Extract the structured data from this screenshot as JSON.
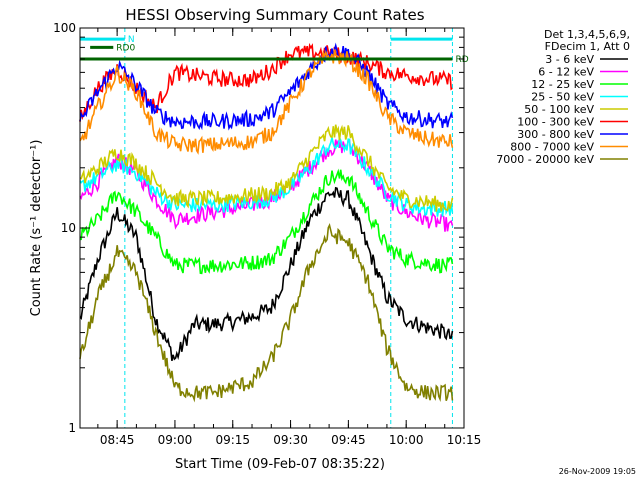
{
  "chart_data": {
    "type": "line",
    "title": "HESSI Observing Summary Count Rates",
    "xlabel": "Start Time (09-Feb-07 08:35:22)",
    "ylabel": "Count Rate (s⁻¹ detector⁻¹)",
    "x_range": [
      "08:35:22",
      "10:15"
    ],
    "ylim": [
      1,
      100
    ],
    "y_scale": "log",
    "x_ticks": [
      "08:45",
      "09:00",
      "09:15",
      "09:30",
      "09:45",
      "10:00",
      "10:15"
    ],
    "y_ticks": [
      "1",
      "10",
      "100"
    ],
    "grid": false,
    "legend_position": "right",
    "legend_header": [
      "Det 1,3,4,5,6,9,",
      "FDecim 1, Att 0"
    ],
    "footer_timestamp": "26-Nov-2009 19:05",
    "flags": [
      {
        "label": "N",
        "color": "#00e5ee",
        "y_level": 88,
        "intervals": [
          [
            "08:35:22",
            "08:47"
          ],
          [
            "09:56",
            "10:12"
          ]
        ]
      },
      {
        "label": "RD0",
        "color": "#006400",
        "y_level": 80,
        "intervals": [
          [
            "08:38",
            "08:44"
          ]
        ]
      },
      {
        "label": "RD",
        "color": "#006400",
        "y_level": 70,
        "intervals": [
          [
            "08:35:22",
            "10:12"
          ]
        ]
      }
    ],
    "vlines": [
      "08:47",
      "09:56",
      "10:12"
    ],
    "x_times": [
      "08:35:22",
      "08:40",
      "08:45",
      "08:50",
      "08:55",
      "09:00",
      "09:05",
      "09:10",
      "09:15",
      "09:20",
      "09:25",
      "09:30",
      "09:35",
      "09:40",
      "09:45",
      "09:50",
      "09:55",
      "10:00",
      "10:05",
      "10:10",
      "10:12"
    ],
    "series": [
      {
        "name": "3 - 6 keV",
        "color": "#000000",
        "values": [
          3.5,
          7.0,
          12.0,
          9.0,
          3.5,
          2.2,
          3.3,
          3.3,
          3.4,
          3.6,
          4.0,
          6.5,
          11.0,
          15.0,
          14.0,
          8.0,
          4.5,
          3.5,
          3.2,
          3.0,
          2.8
        ]
      },
      {
        "name": "6 - 12 keV",
        "color": "#ff00ff",
        "values": [
          14,
          17,
          22,
          19,
          14,
          11,
          11.5,
          12,
          12.5,
          13,
          14,
          16,
          20,
          25,
          26,
          20,
          14,
          12,
          11,
          10.5,
          10
        ]
      },
      {
        "name": "12 - 25 keV",
        "color": "#00ff00",
        "values": [
          9,
          11,
          15,
          12,
          9,
          6.5,
          6.5,
          6.5,
          6.6,
          6.7,
          7,
          9,
          13,
          18,
          18,
          12,
          8,
          7,
          6.7,
          6.5,
          6.5
        ]
      },
      {
        "name": "25 - 50 keV",
        "color": "#00ffff",
        "values": [
          16,
          18,
          21,
          19,
          15,
          13,
          13,
          13,
          13.2,
          13.5,
          14,
          16,
          20,
          26,
          26,
          20,
          15,
          13,
          12.5,
          12.5,
          12.5
        ]
      },
      {
        "name": "50 - 100 keV",
        "color": "#cccc00",
        "values": [
          17,
          20,
          24,
          21,
          17,
          14,
          14,
          14,
          14.3,
          14.6,
          15,
          17,
          23,
          30,
          30,
          22,
          16,
          14,
          13.5,
          13,
          13
        ]
      },
      {
        "name": "100 - 300 keV",
        "color": "#ff0000",
        "values": [
          35,
          50,
          63,
          50,
          40,
          60,
          58,
          56,
          55,
          55,
          62,
          75,
          75,
          75,
          72,
          67,
          60,
          58,
          56,
          55,
          54
        ]
      },
      {
        "name": "300 - 800 keV",
        "color": "#0000ff",
        "values": [
          34,
          48,
          65,
          52,
          38,
          34,
          34,
          34,
          34.5,
          35,
          38,
          48,
          62,
          78,
          75,
          60,
          42,
          36,
          35,
          34,
          34
        ]
      },
      {
        "name": "800 - 7000 keV",
        "color": "#ff8c00",
        "values": [
          26,
          40,
          60,
          48,
          30,
          26,
          26,
          26,
          26.5,
          27,
          30,
          42,
          60,
          73,
          70,
          55,
          36,
          30,
          28,
          27,
          27
        ]
      },
      {
        "name": "7000 - 20000 keV",
        "color": "#808000",
        "values": [
          2.2,
          4.5,
          7.5,
          6.0,
          3.0,
          1.6,
          1.5,
          1.5,
          1.6,
          1.7,
          2.2,
          3.5,
          6.5,
          9.5,
          8.5,
          5.5,
          2.5,
          1.6,
          1.5,
          1.5,
          1.5
        ]
      }
    ]
  }
}
